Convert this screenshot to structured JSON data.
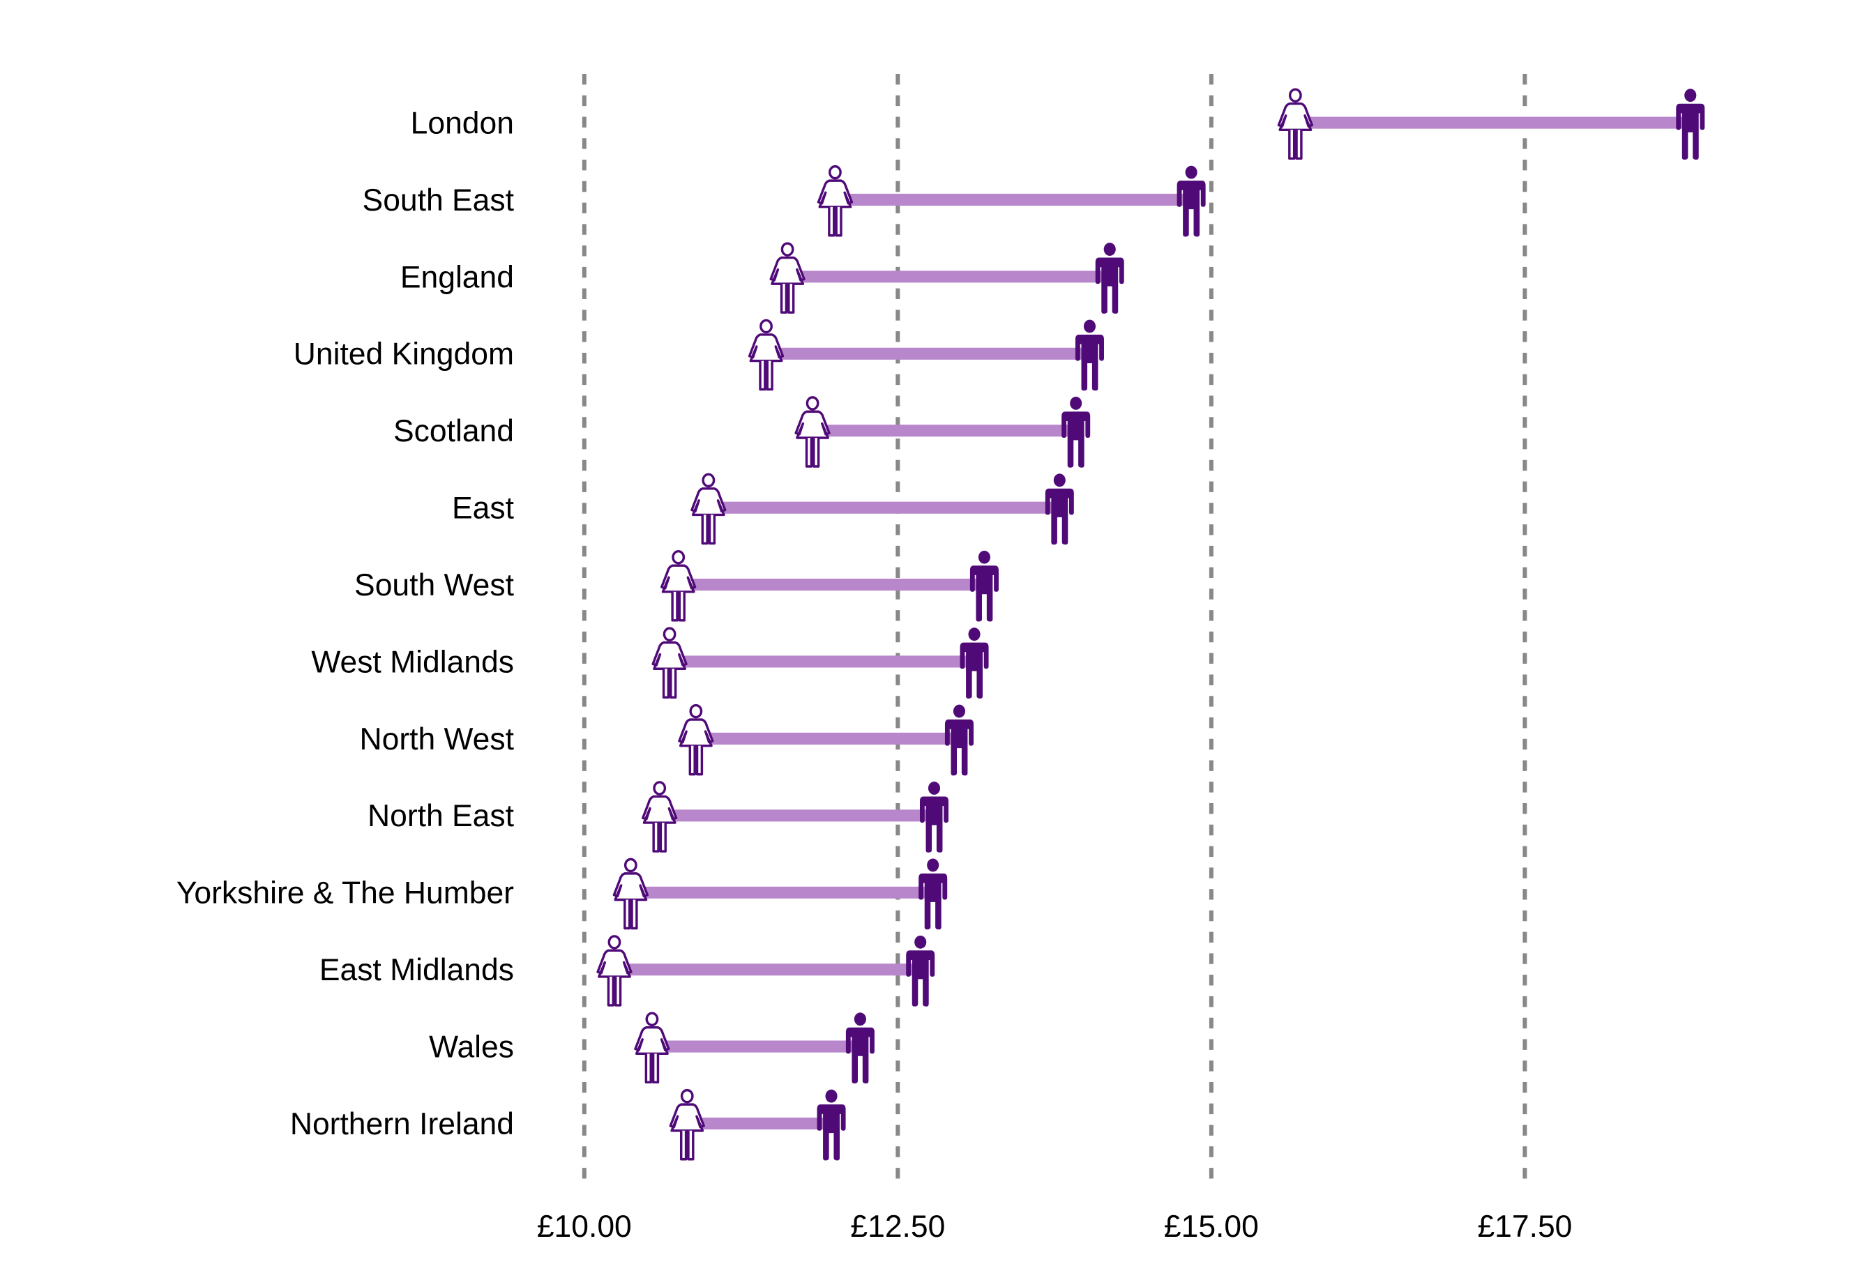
{
  "chart_data": {
    "type": "dumbbell",
    "title": "",
    "xlabel": "",
    "ylabel": "",
    "xlim": [
      10,
      19
    ],
    "x_ticks": [
      10,
      12.5,
      15,
      17.5
    ],
    "x_tick_labels": [
      "£10.00",
      "£12.50",
      "£15.00",
      "£17.50"
    ],
    "grid": "vertical dashed at ticks",
    "series": [
      {
        "name": "Women",
        "marker": "female-icon"
      },
      {
        "name": "Men",
        "marker": "male-icon"
      }
    ],
    "categories": [
      "London",
      "South East",
      "England",
      "United Kingdom",
      "Scotland",
      "East",
      "South West",
      "West Midlands",
      "North West",
      "North East",
      "Yorkshire & The Humber",
      "East Midlands",
      "Wales",
      "Northern Ireland"
    ],
    "women": [
      15.67,
      12.0,
      11.62,
      11.45,
      11.82,
      10.99,
      10.75,
      10.68,
      10.89,
      10.6,
      10.37,
      10.24,
      10.54,
      10.82
    ],
    "men": [
      18.82,
      14.84,
      14.19,
      14.03,
      13.92,
      13.79,
      13.19,
      13.11,
      12.99,
      12.79,
      12.78,
      12.68,
      12.2,
      11.97
    ],
    "colors": {
      "bar": "#B886CB",
      "icon": "#4F0A78",
      "grid": "#888888"
    }
  }
}
